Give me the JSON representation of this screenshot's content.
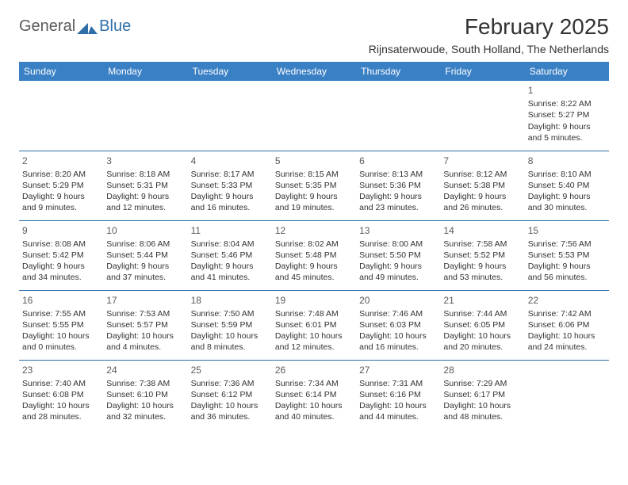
{
  "logo": {
    "text1": "General",
    "text2": "Blue"
  },
  "title": "February 2025",
  "subtitle": "Rijnsaterwoude, South Holland, The Netherlands",
  "colors": {
    "header_bg": "#3a80c4",
    "header_text": "#ffffff",
    "border": "#2f6fa8",
    "text": "#333333",
    "daynum": "#5a5a5a",
    "logo_gray": "#5a5a5a",
    "logo_blue": "#2f6fa8",
    "background": "#ffffff"
  },
  "weekdays": [
    "Sunday",
    "Monday",
    "Tuesday",
    "Wednesday",
    "Thursday",
    "Friday",
    "Saturday"
  ],
  "weeks": [
    [
      null,
      null,
      null,
      null,
      null,
      null,
      {
        "day": "1",
        "sunrise": "Sunrise: 8:22 AM",
        "sunset": "Sunset: 5:27 PM",
        "daylight": "Daylight: 9 hours and 5 minutes."
      }
    ],
    [
      {
        "day": "2",
        "sunrise": "Sunrise: 8:20 AM",
        "sunset": "Sunset: 5:29 PM",
        "daylight": "Daylight: 9 hours and 9 minutes."
      },
      {
        "day": "3",
        "sunrise": "Sunrise: 8:18 AM",
        "sunset": "Sunset: 5:31 PM",
        "daylight": "Daylight: 9 hours and 12 minutes."
      },
      {
        "day": "4",
        "sunrise": "Sunrise: 8:17 AM",
        "sunset": "Sunset: 5:33 PM",
        "daylight": "Daylight: 9 hours and 16 minutes."
      },
      {
        "day": "5",
        "sunrise": "Sunrise: 8:15 AM",
        "sunset": "Sunset: 5:35 PM",
        "daylight": "Daylight: 9 hours and 19 minutes."
      },
      {
        "day": "6",
        "sunrise": "Sunrise: 8:13 AM",
        "sunset": "Sunset: 5:36 PM",
        "daylight": "Daylight: 9 hours and 23 minutes."
      },
      {
        "day": "7",
        "sunrise": "Sunrise: 8:12 AM",
        "sunset": "Sunset: 5:38 PM",
        "daylight": "Daylight: 9 hours and 26 minutes."
      },
      {
        "day": "8",
        "sunrise": "Sunrise: 8:10 AM",
        "sunset": "Sunset: 5:40 PM",
        "daylight": "Daylight: 9 hours and 30 minutes."
      }
    ],
    [
      {
        "day": "9",
        "sunrise": "Sunrise: 8:08 AM",
        "sunset": "Sunset: 5:42 PM",
        "daylight": "Daylight: 9 hours and 34 minutes."
      },
      {
        "day": "10",
        "sunrise": "Sunrise: 8:06 AM",
        "sunset": "Sunset: 5:44 PM",
        "daylight": "Daylight: 9 hours and 37 minutes."
      },
      {
        "day": "11",
        "sunrise": "Sunrise: 8:04 AM",
        "sunset": "Sunset: 5:46 PM",
        "daylight": "Daylight: 9 hours and 41 minutes."
      },
      {
        "day": "12",
        "sunrise": "Sunrise: 8:02 AM",
        "sunset": "Sunset: 5:48 PM",
        "daylight": "Daylight: 9 hours and 45 minutes."
      },
      {
        "day": "13",
        "sunrise": "Sunrise: 8:00 AM",
        "sunset": "Sunset: 5:50 PM",
        "daylight": "Daylight: 9 hours and 49 minutes."
      },
      {
        "day": "14",
        "sunrise": "Sunrise: 7:58 AM",
        "sunset": "Sunset: 5:52 PM",
        "daylight": "Daylight: 9 hours and 53 minutes."
      },
      {
        "day": "15",
        "sunrise": "Sunrise: 7:56 AM",
        "sunset": "Sunset: 5:53 PM",
        "daylight": "Daylight: 9 hours and 56 minutes."
      }
    ],
    [
      {
        "day": "16",
        "sunrise": "Sunrise: 7:55 AM",
        "sunset": "Sunset: 5:55 PM",
        "daylight": "Daylight: 10 hours and 0 minutes."
      },
      {
        "day": "17",
        "sunrise": "Sunrise: 7:53 AM",
        "sunset": "Sunset: 5:57 PM",
        "daylight": "Daylight: 10 hours and 4 minutes."
      },
      {
        "day": "18",
        "sunrise": "Sunrise: 7:50 AM",
        "sunset": "Sunset: 5:59 PM",
        "daylight": "Daylight: 10 hours and 8 minutes."
      },
      {
        "day": "19",
        "sunrise": "Sunrise: 7:48 AM",
        "sunset": "Sunset: 6:01 PM",
        "daylight": "Daylight: 10 hours and 12 minutes."
      },
      {
        "day": "20",
        "sunrise": "Sunrise: 7:46 AM",
        "sunset": "Sunset: 6:03 PM",
        "daylight": "Daylight: 10 hours and 16 minutes."
      },
      {
        "day": "21",
        "sunrise": "Sunrise: 7:44 AM",
        "sunset": "Sunset: 6:05 PM",
        "daylight": "Daylight: 10 hours and 20 minutes."
      },
      {
        "day": "22",
        "sunrise": "Sunrise: 7:42 AM",
        "sunset": "Sunset: 6:06 PM",
        "daylight": "Daylight: 10 hours and 24 minutes."
      }
    ],
    [
      {
        "day": "23",
        "sunrise": "Sunrise: 7:40 AM",
        "sunset": "Sunset: 6:08 PM",
        "daylight": "Daylight: 10 hours and 28 minutes."
      },
      {
        "day": "24",
        "sunrise": "Sunrise: 7:38 AM",
        "sunset": "Sunset: 6:10 PM",
        "daylight": "Daylight: 10 hours and 32 minutes."
      },
      {
        "day": "25",
        "sunrise": "Sunrise: 7:36 AM",
        "sunset": "Sunset: 6:12 PM",
        "daylight": "Daylight: 10 hours and 36 minutes."
      },
      {
        "day": "26",
        "sunrise": "Sunrise: 7:34 AM",
        "sunset": "Sunset: 6:14 PM",
        "daylight": "Daylight: 10 hours and 40 minutes."
      },
      {
        "day": "27",
        "sunrise": "Sunrise: 7:31 AM",
        "sunset": "Sunset: 6:16 PM",
        "daylight": "Daylight: 10 hours and 44 minutes."
      },
      {
        "day": "28",
        "sunrise": "Sunrise: 7:29 AM",
        "sunset": "Sunset: 6:17 PM",
        "daylight": "Daylight: 10 hours and 48 minutes."
      },
      null
    ]
  ]
}
